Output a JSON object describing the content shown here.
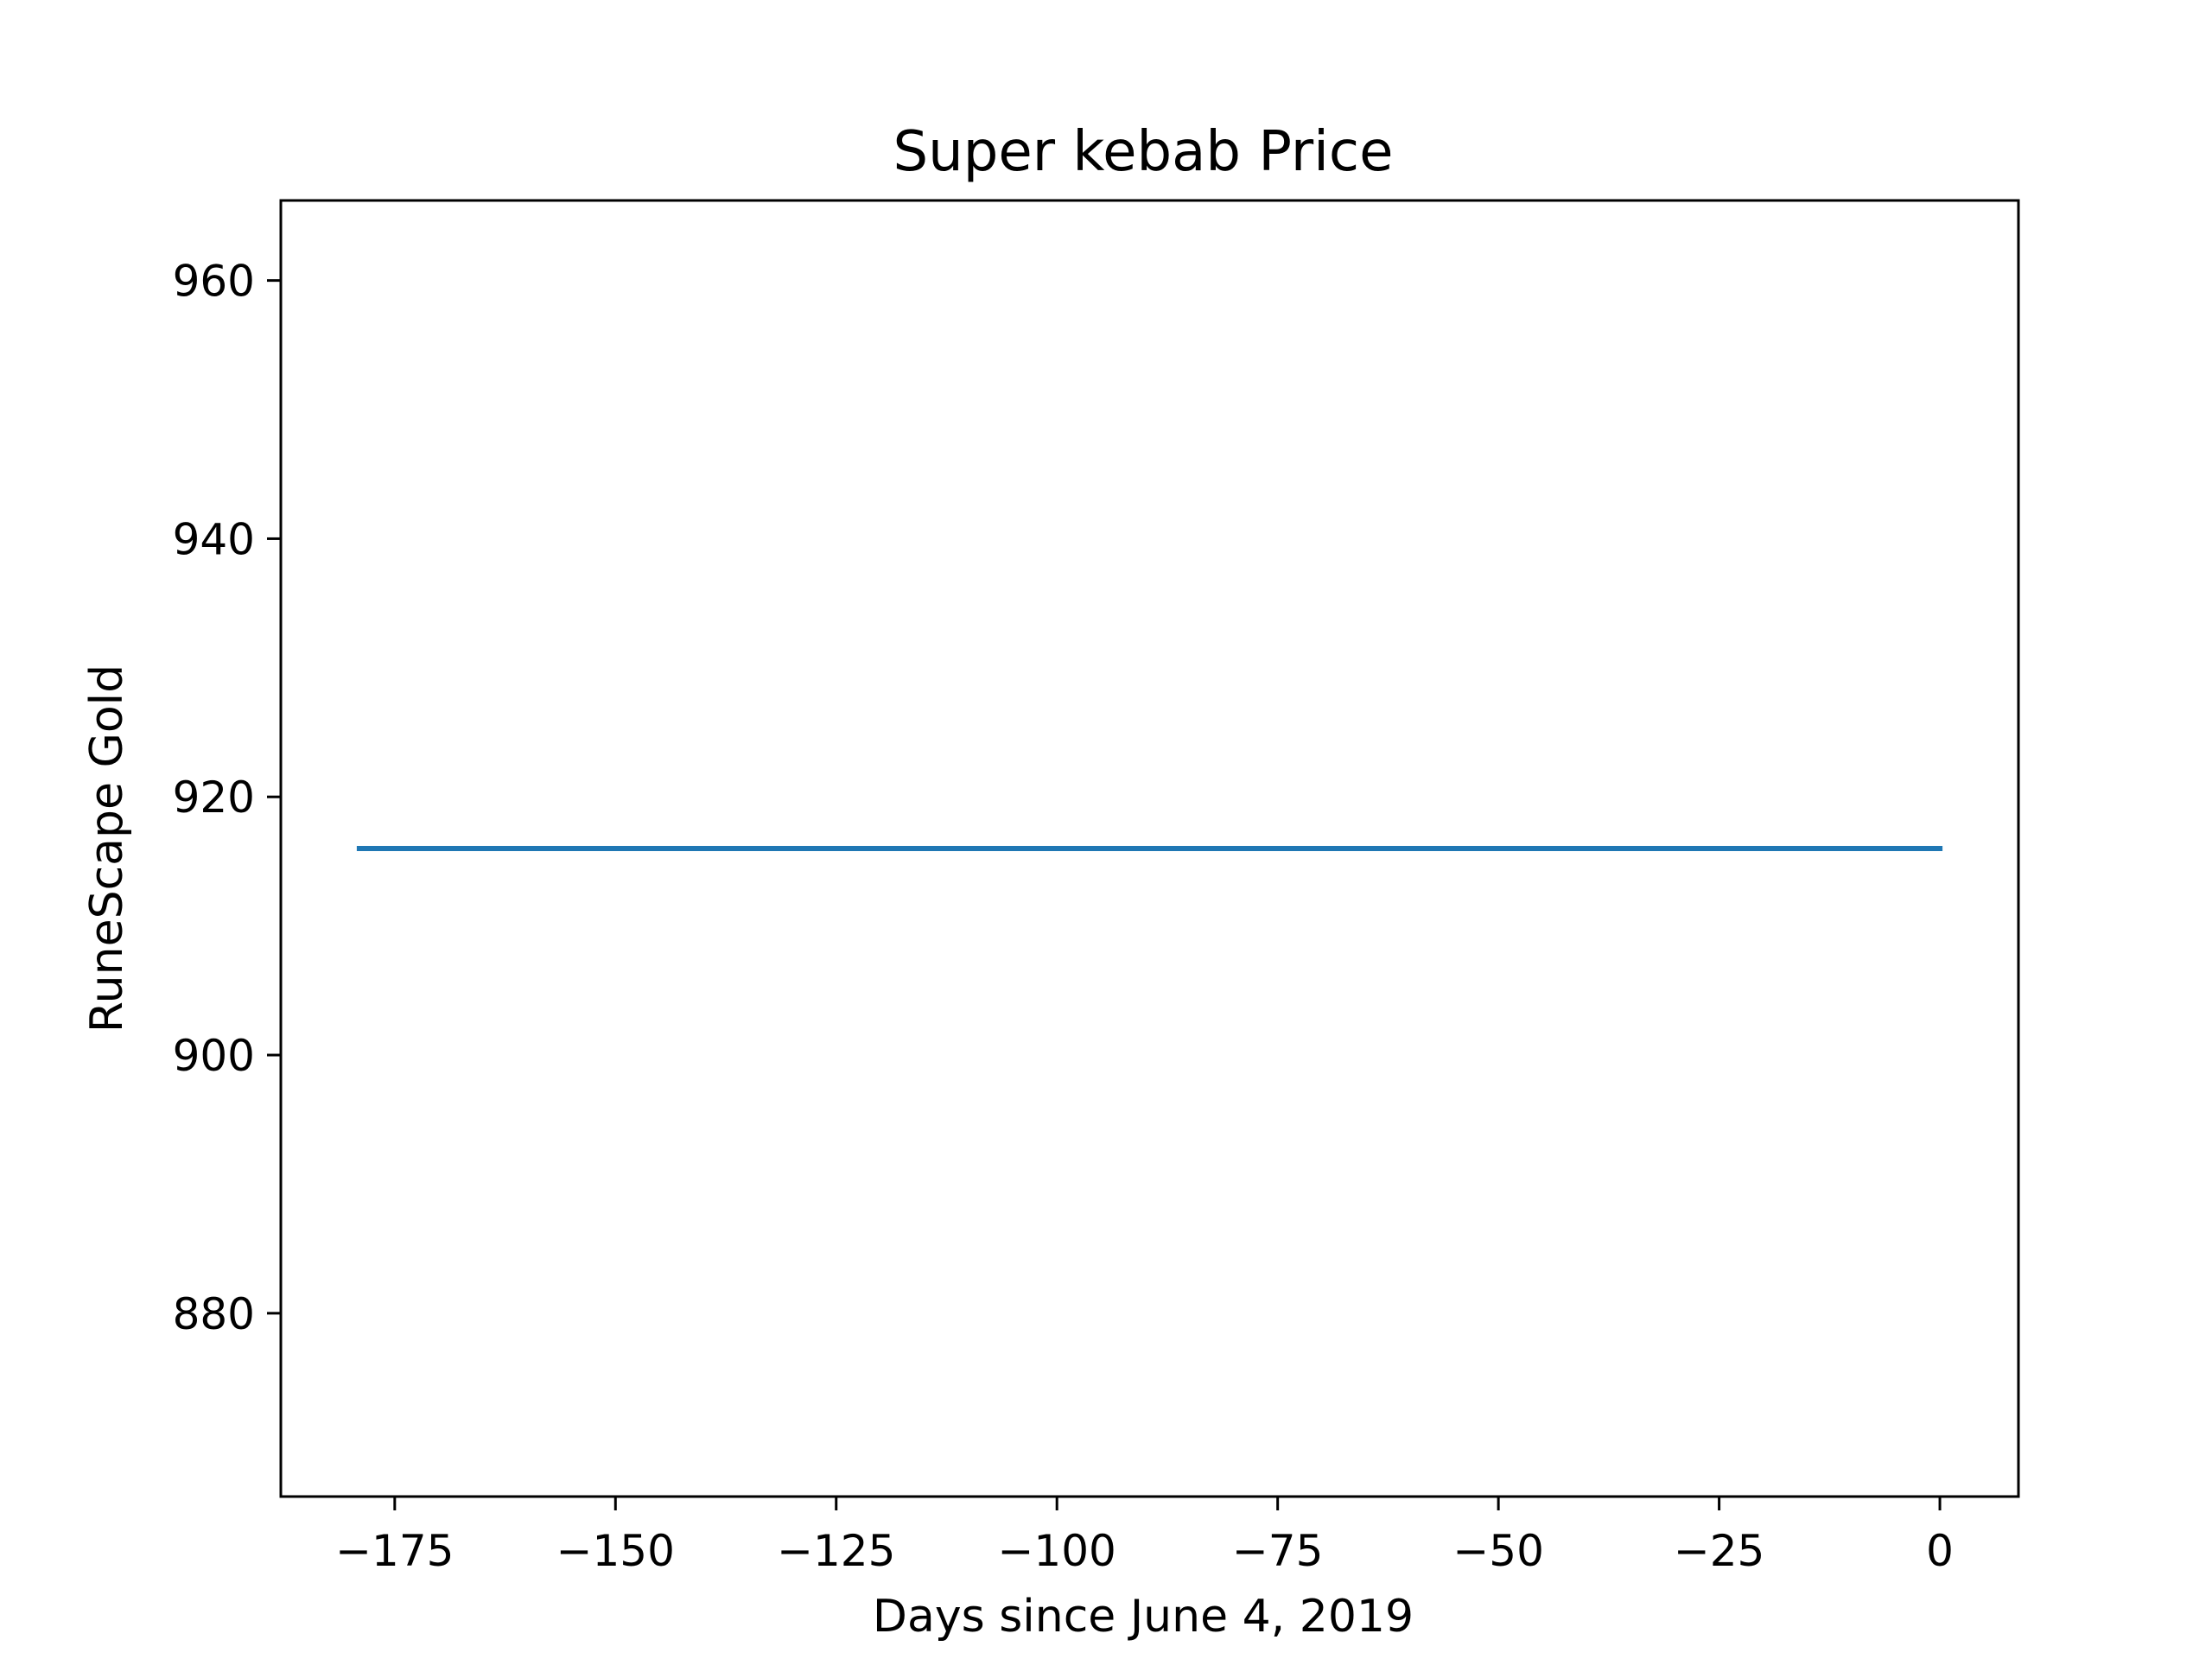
{
  "chart_data": {
    "type": "line",
    "title": "Super kebab Price",
    "xlabel": "Days since June 4, 2019",
    "ylabel": "RuneScape Gold",
    "xlim": [
      -187.9,
      8.9
    ],
    "ylim": [
      865.8,
      966.2
    ],
    "xticks": [
      -175,
      -150,
      -125,
      -100,
      -75,
      -50,
      -25,
      0
    ],
    "xtick_labels": [
      "−175",
      "−150",
      "−125",
      "−100",
      "−75",
      "−50",
      "−25",
      "0"
    ],
    "yticks": [
      880,
      900,
      920,
      940,
      960
    ],
    "ytick_labels": [
      "880",
      "900",
      "920",
      "940",
      "960"
    ],
    "grid": false,
    "series": [
      {
        "color": "#1f77b4",
        "x": [
          -179,
          0
        ],
        "y": [
          916,
          916
        ]
      }
    ]
  }
}
